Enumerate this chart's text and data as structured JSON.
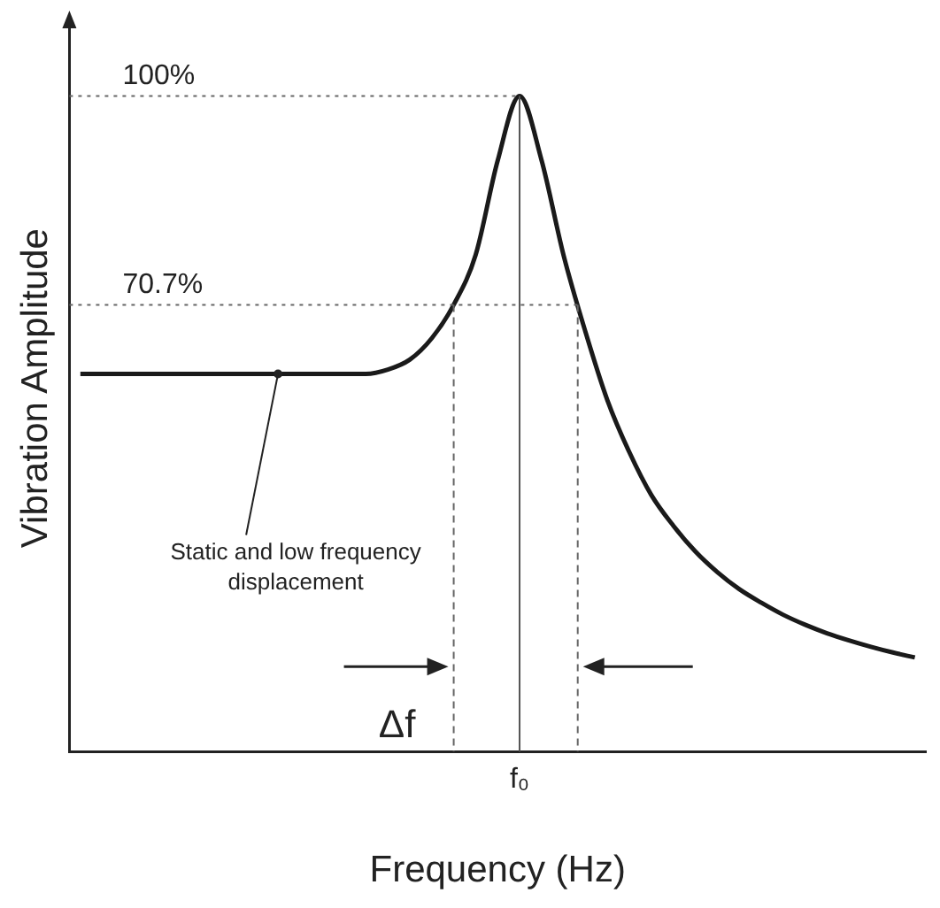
{
  "chart_data": {
    "type": "line",
    "xlabel": "Frequency (Hz)",
    "ylabel": "Vibration Amplitude",
    "categories": [
      null,
      null,
      null,
      null,
      null,
      null,
      null,
      null,
      null,
      null,
      null,
      null,
      null,
      null,
      null,
      null,
      null,
      null,
      null,
      null,
      null,
      null,
      null,
      null,
      null,
      null,
      null,
      null,
      null,
      null,
      null,
      null,
      null,
      null,
      null,
      null,
      null,
      null,
      null
    ],
    "series": [
      {
        "color": "#1a1a1a",
        "values": [
          61,
          61,
          61,
          61,
          61,
          61,
          61,
          61,
          61,
          61,
          61,
          61,
          61,
          61,
          61.6,
          63,
          66,
          70.7,
          77.7,
          90.9,
          100,
          91,
          77.7,
          66.9,
          57.3,
          50,
          44,
          39.7,
          36.1,
          33.2,
          30.8,
          28.9,
          27.2,
          25.8,
          24.6,
          23.6,
          22.7,
          21.9,
          21.2
        ]
      }
    ],
    "ylim": [
      8,
      110
    ],
    "ref_lines": [
      {
        "axis": "x",
        "label": "f₀",
        "color": "#555555",
        "line_style": "solid"
      },
      {
        "axis": "y",
        "value": 100,
        "label": "100%",
        "line_style": "dotted"
      },
      {
        "axis": "y",
        "value": 70.7,
        "label": "70.7%",
        "line_style": "dotted"
      }
    ],
    "annotations": [
      "Static and low frequency displacement",
      "Δf"
    ],
    "marker": "none",
    "line_style": "solid",
    "grid": false,
    "legend": false,
    "tick_labels": "x"
  }
}
